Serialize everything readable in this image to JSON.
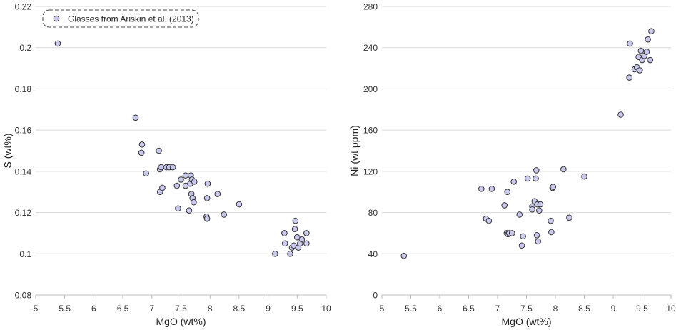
{
  "chart_data": [
    {
      "type": "scatter",
      "title": "",
      "xlabel": "MgO (wt%)",
      "ylabel": "S (wt%)",
      "xlim": [
        5,
        10
      ],
      "ylim": [
        0.08,
        0.22
      ],
      "xticks": [
        5,
        5.5,
        6,
        6.5,
        7,
        7.5,
        8,
        8.5,
        9,
        9.5,
        10
      ],
      "xtick_labels": [
        "5",
        "5.5",
        "6",
        "6.5",
        "7",
        "7.5",
        "8",
        "8.5",
        "9",
        "9.5",
        "10"
      ],
      "yticks": [
        0.08,
        0.1,
        0.12,
        0.14,
        0.16,
        0.18,
        0.2,
        0.22
      ],
      "ytick_labels": [
        "0.08",
        "0.1",
        "0.12",
        "0.14",
        "0.16",
        "0.18",
        "0.2",
        "0.22"
      ],
      "grid": "horizontal",
      "legend": {
        "position": "top-left",
        "entries": [
          "Glasses from Ariskin et al. (2013)"
        ]
      },
      "series": [
        {
          "name": "Glasses from Ariskin et al. (2013)",
          "color": "#c9c9ee",
          "points": [
            [
              5.38,
              0.202
            ],
            [
              6.72,
              0.166
            ],
            [
              6.83,
              0.153
            ],
            [
              6.82,
              0.149
            ],
            [
              6.9,
              0.139
            ],
            [
              7.12,
              0.15
            ],
            [
              7.14,
              0.141
            ],
            [
              7.16,
              0.142
            ],
            [
              7.25,
              0.142
            ],
            [
              7.3,
              0.142
            ],
            [
              7.36,
              0.142
            ],
            [
              7.14,
              0.13
            ],
            [
              7.18,
              0.132
            ],
            [
              7.43,
              0.133
            ],
            [
              7.45,
              0.122
            ],
            [
              7.5,
              0.136
            ],
            [
              7.58,
              0.138
            ],
            [
              7.58,
              0.133
            ],
            [
              7.64,
              0.121
            ],
            [
              7.66,
              0.134
            ],
            [
              7.67,
              0.138
            ],
            [
              7.69,
              0.136
            ],
            [
              7.68,
              0.129
            ],
            [
              7.7,
              0.127
            ],
            [
              7.72,
              0.125
            ],
            [
              7.73,
              0.135
            ],
            [
              7.94,
              0.118
            ],
            [
              7.95,
              0.117
            ],
            [
              7.95,
              0.127
            ],
            [
              7.96,
              0.134
            ],
            [
              8.13,
              0.129
            ],
            [
              8.24,
              0.119
            ],
            [
              8.5,
              0.124
            ],
            [
              9.12,
              0.1
            ],
            [
              9.28,
              0.11
            ],
            [
              9.29,
              0.105
            ],
            [
              9.38,
              0.1
            ],
            [
              9.41,
              0.103
            ],
            [
              9.44,
              0.104
            ],
            [
              9.46,
              0.112
            ],
            [
              9.47,
              0.116
            ],
            [
              9.5,
              0.108
            ],
            [
              9.52,
              0.103
            ],
            [
              9.55,
              0.105
            ],
            [
              9.58,
              0.107
            ],
            [
              9.66,
              0.11
            ],
            [
              9.66,
              0.105
            ]
          ]
        }
      ]
    },
    {
      "type": "scatter",
      "title": "",
      "xlabel": "MgO (wt%)",
      "ylabel": "Ni (wt ppm)",
      "xlim": [
        5,
        10
      ],
      "ylim": [
        0,
        280
      ],
      "xticks": [
        5,
        5.5,
        6,
        6.5,
        7,
        7.5,
        8,
        8.5,
        9,
        9.5,
        10
      ],
      "xtick_labels": [
        "5",
        "5.5",
        "6",
        "6.5",
        "7",
        "7.5",
        "8",
        "8.5",
        "9",
        "9.5",
        "10"
      ],
      "yticks": [
        0,
        40,
        80,
        120,
        160,
        200,
        240,
        280
      ],
      "ytick_labels": [
        "0",
        "40",
        "80",
        "120",
        "160",
        "200",
        "240",
        "280"
      ],
      "grid": "horizontal",
      "series": [
        {
          "name": "Glasses from Ariskin et al. (2013)",
          "color": "#c9c9ee",
          "points": [
            [
              5.38,
              38
            ],
            [
              6.72,
              103
            ],
            [
              6.8,
              74
            ],
            [
              6.85,
              72
            ],
            [
              6.9,
              103
            ],
            [
              7.12,
              87
            ],
            [
              7.16,
              60
            ],
            [
              7.17,
              100
            ],
            [
              7.18,
              59
            ],
            [
              7.2,
              60
            ],
            [
              7.25,
              60
            ],
            [
              7.28,
              110
            ],
            [
              7.38,
              78
            ],
            [
              7.42,
              48
            ],
            [
              7.44,
              57
            ],
            [
              7.52,
              113
            ],
            [
              7.6,
              86
            ],
            [
              7.6,
              83
            ],
            [
              7.64,
              91
            ],
            [
              7.66,
              113
            ],
            [
              7.67,
              121
            ],
            [
              7.68,
              58
            ],
            [
              7.69,
              88
            ],
            [
              7.7,
              52
            ],
            [
              7.72,
              82
            ],
            [
              7.74,
              88
            ],
            [
              7.92,
              72
            ],
            [
              7.93,
              61
            ],
            [
              7.95,
              104
            ],
            [
              7.96,
              105
            ],
            [
              8.14,
              122
            ],
            [
              8.24,
              75
            ],
            [
              8.5,
              115
            ],
            [
              9.13,
              175
            ],
            [
              9.28,
              211
            ],
            [
              9.29,
              244
            ],
            [
              9.37,
              219
            ],
            [
              9.41,
              221
            ],
            [
              9.44,
              231
            ],
            [
              9.46,
              218
            ],
            [
              9.48,
              237
            ],
            [
              9.5,
              228
            ],
            [
              9.54,
              232
            ],
            [
              9.58,
              236
            ],
            [
              9.6,
              248
            ],
            [
              9.64,
              228
            ],
            [
              9.66,
              256
            ]
          ]
        }
      ]
    }
  ]
}
